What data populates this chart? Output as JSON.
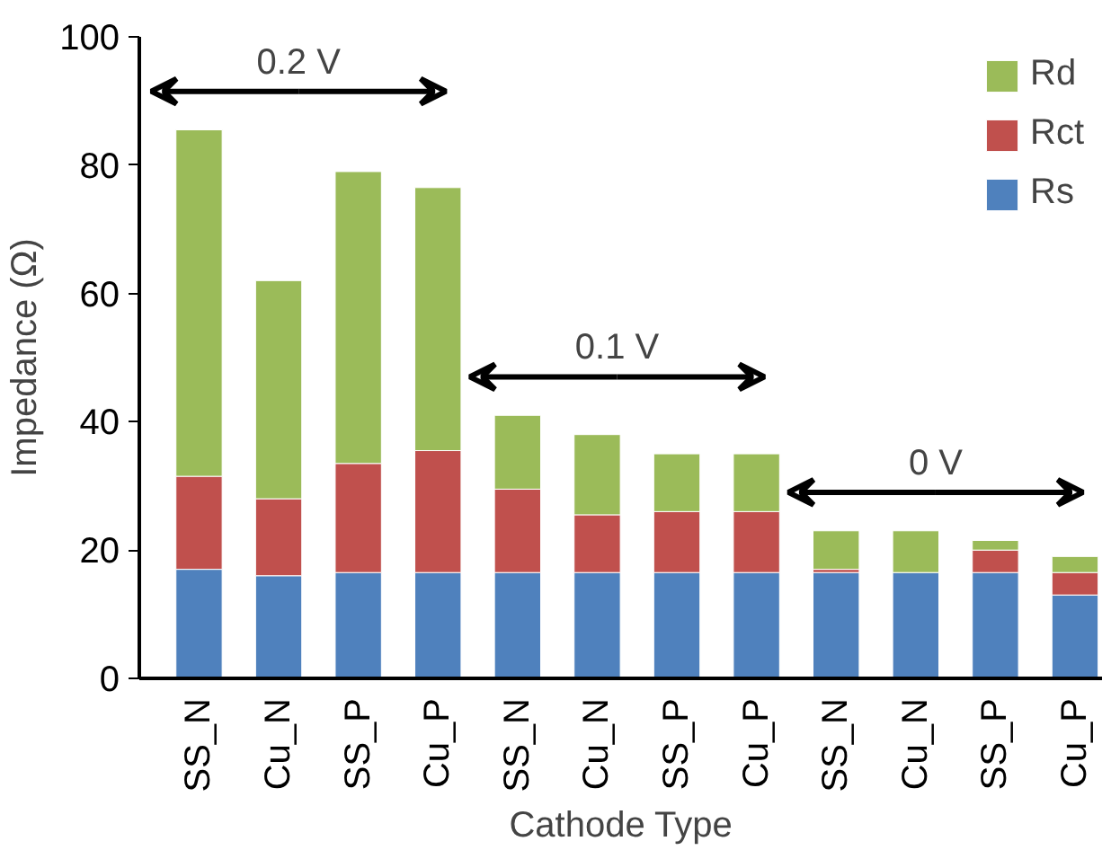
{
  "chart_data": {
    "type": "bar",
    "stacked": true,
    "xlabel": "Cathode Type",
    "ylabel": "Impedance (Ω)",
    "categories": [
      "SS_N",
      "Cu_N",
      "SS_P",
      "Cu_P",
      "SS_N",
      "Cu_N",
      "SS_P",
      "Cu_P",
      "SS_N",
      "Cu_N",
      "SS_P",
      "Cu_P"
    ],
    "series": [
      {
        "name": "Rs",
        "color": "#4f81bd",
        "values": [
          17,
          16,
          16.5,
          16.5,
          16.5,
          16.5,
          16.5,
          16.5,
          16.5,
          16.5,
          16.5,
          13
        ]
      },
      {
        "name": "Rct",
        "color": "#c0504d",
        "values": [
          14.5,
          12,
          17,
          19,
          13,
          9,
          9.5,
          9.5,
          0.5,
          0,
          3.5,
          3.5
        ]
      },
      {
        "name": "Rd",
        "color": "#9bbb59",
        "values": [
          54,
          34,
          45.5,
          41,
          11.5,
          12.5,
          9,
          9,
          6,
          6.5,
          1.5,
          2.5
        ]
      }
    ],
    "ylim": [
      0,
      100
    ],
    "yticks": [
      0,
      20,
      40,
      60,
      80,
      100
    ],
    "grid": false,
    "legend": "top right",
    "annotations": [
      "0.2 V",
      "0.1 V",
      "0 V"
    ]
  }
}
